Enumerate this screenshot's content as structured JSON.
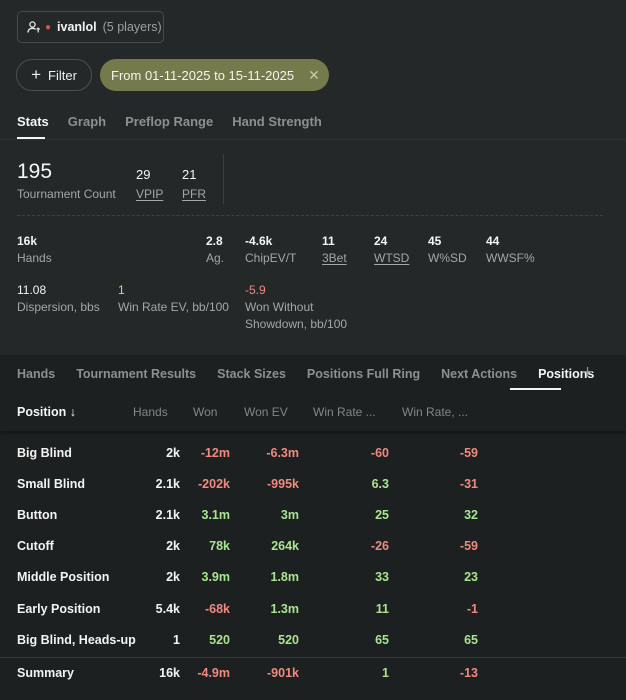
{
  "player": {
    "name": "ivanlol",
    "count": "(5 players)"
  },
  "filter": {
    "label": "Filter",
    "date_range": "From 01-11-2025 to 15-11-2025"
  },
  "main_tabs": [
    "Stats",
    "Graph",
    "Preflop Range",
    "Hand Strength"
  ],
  "stats": {
    "tournament_count": {
      "value": "195",
      "label": "Tournament Count"
    },
    "vpip": {
      "value": "29",
      "label": "VPIP"
    },
    "pfr": {
      "value": "21",
      "label": "PFR"
    },
    "hands": {
      "value": "16k",
      "label": "Hands"
    },
    "ag": {
      "value": "2.8",
      "label": "Ag."
    },
    "chipev": {
      "value": "-4.6k",
      "label": "ChipEV/T"
    },
    "threebet": {
      "value": "11",
      "label": "3Bet"
    },
    "wtsd": {
      "value": "24",
      "label": "WTSD"
    },
    "wsd": {
      "value": "45",
      "label": "W%SD"
    },
    "wwsf": {
      "value": "44",
      "label": "WWSF%"
    },
    "dispersion": {
      "value": "11.08",
      "label": "Dispersion, bbs"
    },
    "winrate_ev": {
      "value": "1",
      "label": "Win Rate EV, bb/100"
    },
    "won_without_sd": {
      "value": "-5.9",
      "label_line1": "Won Without",
      "label_line2": "Showdown, bb/100"
    }
  },
  "sub_tabs": [
    "Hands",
    "Tournament Results",
    "Stack Sizes",
    "Positions Full Ring",
    "Next Actions",
    "Positions"
  ],
  "add_tab": "+",
  "table": {
    "headers": {
      "position": "Position ↓",
      "hands": "Hands",
      "won": "Won",
      "won_ev": "Won EV",
      "win_rate": "Win Rate ...",
      "win_rate2": "Win Rate, ..."
    },
    "rows": [
      {
        "position": "Big Blind",
        "hands": "2k",
        "won": "-12m",
        "won_ev": "-6.3m",
        "win_rate": "-60",
        "win_rate2": "-59"
      },
      {
        "position": "Small Blind",
        "hands": "2.1k",
        "won": "-202k",
        "won_ev": "-995k",
        "win_rate": "6.3",
        "win_rate2": "-31"
      },
      {
        "position": "Button",
        "hands": "2.1k",
        "won": "3.1m",
        "won_ev": "3m",
        "win_rate": "25",
        "win_rate2": "32"
      },
      {
        "position": "Cutoff",
        "hands": "2k",
        "won": "78k",
        "won_ev": "264k",
        "win_rate": "-26",
        "win_rate2": "-59"
      },
      {
        "position": "Middle Position",
        "hands": "2k",
        "won": "3.9m",
        "won_ev": "1.8m",
        "win_rate": "33",
        "win_rate2": "23"
      },
      {
        "position": "Early Position",
        "hands": "5.4k",
        "won": "-68k",
        "won_ev": "1.3m",
        "win_rate": "11",
        "win_rate2": "-1"
      },
      {
        "position": "Big Blind, Heads-up",
        "hands": "1",
        "won": "520",
        "won_ev": "520",
        "win_rate": "65",
        "win_rate2": "65"
      }
    ],
    "summary": {
      "position": "Summary",
      "hands": "16k",
      "won": "-4.9m",
      "won_ev": "-901k",
      "win_rate": "1",
      "win_rate2": "-13"
    }
  },
  "colors": {
    "positive": "#a8e58f",
    "negative": "#f08a80",
    "accent_chip": "#757a4d"
  }
}
